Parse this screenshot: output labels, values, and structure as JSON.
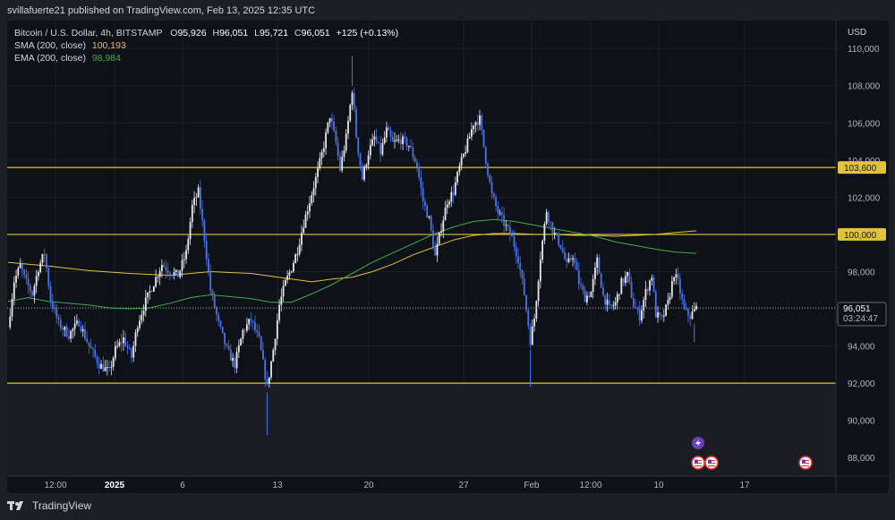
{
  "header": {
    "published": "svillafuerte21 published on TradingView.com, Feb 13, 2025 12:35 UTC"
  },
  "legend": {
    "symbol": "Bitcoin / U.S. Dollar, 4h, BITSTAMP",
    "o_label": "O",
    "o": "95,926",
    "h_label": "H",
    "h": "96,051",
    "l_label": "L",
    "l": "95,721",
    "c_label": "C",
    "c": "96,051",
    "change": "+125 (+0.13%)",
    "sma_label": "SMA (200, close)",
    "sma_value": "100,193",
    "ema_label": "EMA (200, close)",
    "ema_value": "98,984"
  },
  "price_axis": {
    "currency": "USD",
    "ticks": [
      "110,000",
      "108,000",
      "106,000",
      "104,000",
      "102,000",
      "100,000",
      "98,000",
      "96,000",
      "94,000",
      "92,000",
      "90,000",
      "88,000"
    ],
    "tick_values": [
      110000,
      108000,
      106000,
      104000,
      102000,
      100000,
      98000,
      96000,
      94000,
      92000,
      90000,
      88000
    ],
    "last_price": "96,051",
    "last_price_value": 96051,
    "countdown": "03:24:47",
    "level_labels": [
      {
        "label": "103,600",
        "value": 103600
      },
      {
        "label": "100,000",
        "value": 100000
      }
    ]
  },
  "time_axis": {
    "labels": [
      "12:00",
      "2025",
      "6",
      "13",
      "20",
      "27",
      "Feb",
      "12:00",
      "10",
      "17"
    ]
  },
  "levels": [
    103600,
    100000,
    92000
  ],
  "colors": {
    "level_line": "#e0c33a",
    "sma": "#e0c33a",
    "ema": "#3fae4a",
    "candle": "#4b73e8",
    "candle_up": "#e8e8ec",
    "zone": "#1e1f24"
  },
  "chart_data": {
    "type": "candlestick",
    "title": "Bitcoin / U.S. Dollar, 4h, BITSTAMP",
    "ylim": [
      87000,
      111500
    ],
    "close_path": [
      [
        0,
        95000
      ],
      [
        3,
        97500
      ],
      [
        6,
        98300
      ],
      [
        9,
        97400
      ],
      [
        12,
        96800
      ],
      [
        15,
        98200
      ],
      [
        18,
        99000
      ],
      [
        21,
        96500
      ],
      [
        25,
        95200
      ],
      [
        30,
        94600
      ],
      [
        35,
        95300
      ],
      [
        40,
        94000
      ],
      [
        45,
        93000
      ],
      [
        50,
        92600
      ],
      [
        53,
        93800
      ],
      [
        57,
        94400
      ],
      [
        61,
        93400
      ],
      [
        64,
        95200
      ],
      [
        68,
        96400
      ],
      [
        72,
        97400
      ],
      [
        76,
        98400
      ],
      [
        80,
        98000
      ],
      [
        84,
        97800
      ],
      [
        88,
        99000
      ],
      [
        91,
        101500
      ],
      [
        94,
        102300
      ],
      [
        97,
        99800
      ],
      [
        100,
        97000
      ],
      [
        104,
        95200
      ],
      [
        108,
        93800
      ],
      [
        112,
        93000
      ],
      [
        116,
        94800
      ],
      [
        120,
        95400
      ],
      [
        124,
        94300
      ],
      [
        128,
        91800
      ],
      [
        131,
        93800
      ],
      [
        134,
        96200
      ],
      [
        137,
        97400
      ],
      [
        140,
        98200
      ],
      [
        143,
        99200
      ],
      [
        146,
        100600
      ],
      [
        150,
        102200
      ],
      [
        153,
        103400
      ],
      [
        156,
        104800
      ],
      [
        159,
        106400
      ],
      [
        162,
        104900
      ],
      [
        164,
        103500
      ],
      [
        167,
        105200
      ],
      [
        170,
        107800
      ],
      [
        172,
        105300
      ],
      [
        175,
        103000
      ],
      [
        178,
        104400
      ],
      [
        181,
        105200
      ],
      [
        184,
        104400
      ],
      [
        187,
        105600
      ],
      [
        190,
        104900
      ],
      [
        194,
        105100
      ],
      [
        198,
        104800
      ],
      [
        202,
        103700
      ],
      [
        205,
        101800
      ],
      [
        208,
        100800
      ],
      [
        211,
        98800
      ],
      [
        214,
        100400
      ],
      [
        217,
        101800
      ],
      [
        220,
        102300
      ],
      [
        223,
        103600
      ],
      [
        227,
        104900
      ],
      [
        230,
        106000
      ],
      [
        233,
        106200
      ],
      [
        236,
        104000
      ],
      [
        239,
        102100
      ],
      [
        242,
        101200
      ],
      [
        245,
        100600
      ],
      [
        249,
        99800
      ],
      [
        252,
        98700
      ],
      [
        255,
        96800
      ],
      [
        258,
        94300
      ],
      [
        260,
        95500
      ],
      [
        263,
        98800
      ],
      [
        266,
        101300
      ],
      [
        269,
        100200
      ],
      [
        273,
        99400
      ],
      [
        276,
        98300
      ],
      [
        279,
        98900
      ],
      [
        282,
        97400
      ],
      [
        285,
        96600
      ],
      [
        288,
        96900
      ],
      [
        291,
        98600
      ],
      [
        294,
        96700
      ],
      [
        297,
        96000
      ],
      [
        300,
        96300
      ],
      [
        303,
        97400
      ],
      [
        306,
        97800
      ],
      [
        309,
        96200
      ],
      [
        312,
        95600
      ],
      [
        315,
        96900
      ],
      [
        318,
        97800
      ],
      [
        320,
        95700
      ],
      [
        323,
        95400
      ],
      [
        326,
        96300
      ],
      [
        329,
        97900
      ],
      [
        331,
        97400
      ],
      [
        334,
        95900
      ],
      [
        337,
        95600
      ],
      [
        340,
        96051
      ]
    ],
    "sma_path": [
      [
        0,
        98500
      ],
      [
        20,
        98300
      ],
      [
        40,
        98050
      ],
      [
        60,
        97900
      ],
      [
        80,
        97800
      ],
      [
        100,
        98000
      ],
      [
        120,
        97900
      ],
      [
        140,
        97600
      ],
      [
        150,
        97450
      ],
      [
        160,
        97600
      ],
      [
        170,
        97700
      ],
      [
        180,
        98000
      ],
      [
        190,
        98400
      ],
      [
        200,
        98900
      ],
      [
        210,
        99300
      ],
      [
        220,
        99700
      ],
      [
        230,
        99950
      ],
      [
        240,
        100050
      ],
      [
        250,
        100050
      ],
      [
        260,
        100000
      ],
      [
        270,
        100000
      ],
      [
        280,
        99950
      ],
      [
        290,
        99950
      ],
      [
        300,
        99900
      ],
      [
        310,
        99950
      ],
      [
        320,
        100000
      ],
      [
        330,
        100100
      ],
      [
        340,
        100193
      ]
    ],
    "ema_path": [
      [
        0,
        96400
      ],
      [
        10,
        96600
      ],
      [
        20,
        96400
      ],
      [
        30,
        96300
      ],
      [
        40,
        96200
      ],
      [
        50,
        96050
      ],
      [
        60,
        96000
      ],
      [
        70,
        96050
      ],
      [
        80,
        96300
      ],
      [
        90,
        96600
      ],
      [
        100,
        96750
      ],
      [
        110,
        96650
      ],
      [
        120,
        96550
      ],
      [
        130,
        96350
      ],
      [
        140,
        96350
      ],
      [
        150,
        96800
      ],
      [
        160,
        97300
      ],
      [
        170,
        97900
      ],
      [
        180,
        98500
      ],
      [
        190,
        99000
      ],
      [
        200,
        99500
      ],
      [
        210,
        100000
      ],
      [
        220,
        100400
      ],
      [
        230,
        100700
      ],
      [
        240,
        100800
      ],
      [
        250,
        100700
      ],
      [
        260,
        100500
      ],
      [
        270,
        100300
      ],
      [
        280,
        100100
      ],
      [
        290,
        99900
      ],
      [
        300,
        99600
      ],
      [
        310,
        99400
      ],
      [
        320,
        99200
      ],
      [
        330,
        99050
      ],
      [
        340,
        98984
      ]
    ]
  }
}
